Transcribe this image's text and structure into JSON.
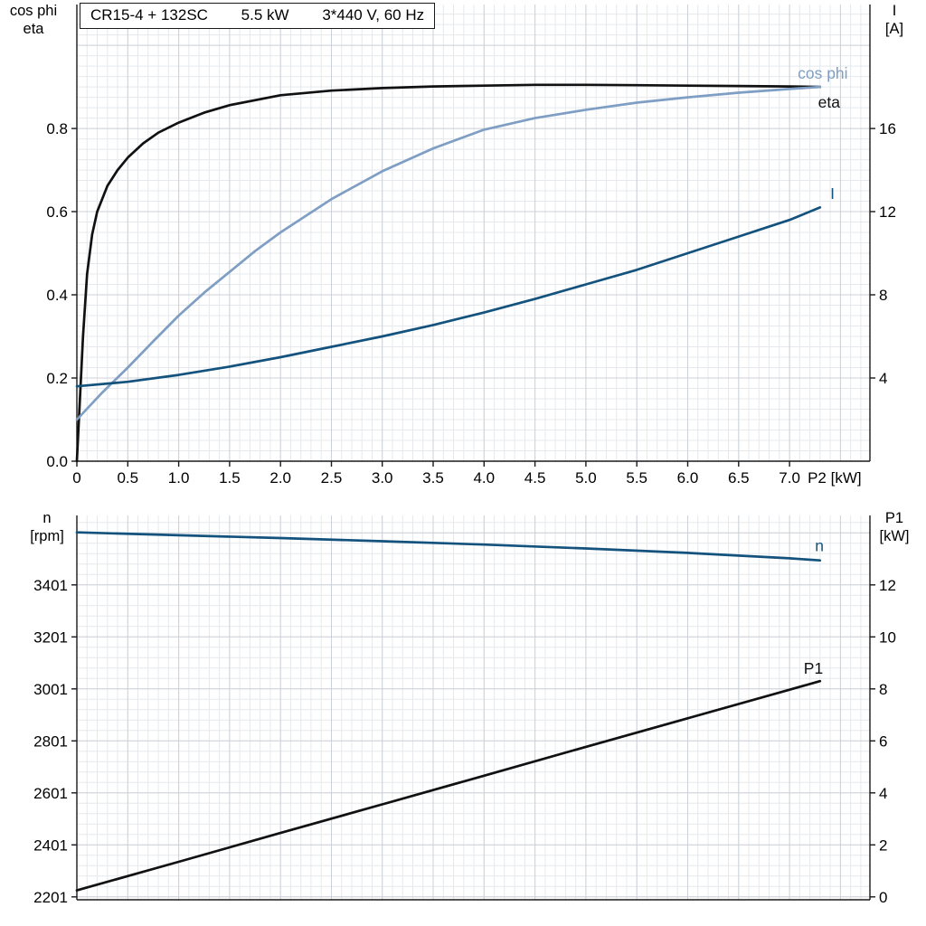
{
  "header": {
    "model": "CR15-4 + 132SC",
    "power": "5.5 kW",
    "voltage": "3*440 V, 60 Hz"
  },
  "axes_titles": {
    "top_left_line1": "cos phi",
    "top_left_line2": "eta",
    "top_right_line1": "I",
    "top_right_line2": "[A]",
    "bottom_left_line1": "n",
    "bottom_left_line2": "[rpm]",
    "bottom_right_line1": "P1",
    "bottom_right_line2": "[kW]"
  },
  "chart_data": [
    {
      "type": "line",
      "title": "CR15-4 + 132SC   5.5 kW   3*440 V, 60 Hz",
      "xlabel": "P2 [kW]",
      "xlim": [
        0,
        7.79
      ],
      "x_ticks": [
        "0",
        "0.5",
        "1.0",
        "1.5",
        "2.0",
        "2.5",
        "3.0",
        "3.5",
        "4.0",
        "4.5",
        "5.0",
        "5.5",
        "6.0",
        "6.5",
        "7.0"
      ],
      "left_axis": {
        "title": "cos phi / eta",
        "lim": [
          0,
          1.098
        ],
        "ticks": [
          "0.0",
          "0.2",
          "0.4",
          "0.6",
          "0.8"
        ]
      },
      "right_axis": {
        "title": "I [A]",
        "lim": [
          0,
          21.96
        ],
        "ticks": [
          "4",
          "8",
          "12",
          "16"
        ]
      },
      "grid": {
        "base_x": 0,
        "minor_x": 0.1,
        "major_x": 0.5,
        "base_y": 0,
        "minor_y": 0.025,
        "major_y": 0.2
      },
      "colors": {
        "grid_minor": "#e5e9ed",
        "grid_major": "#ccd2d8",
        "axis": "#1a1a1a",
        "text": "#000000"
      },
      "series": [
        {
          "name": "eta",
          "axis": "left",
          "color": "#111111",
          "x": [
            0,
            0.03,
            0.06,
            0.1,
            0.15,
            0.2,
            0.3,
            0.4,
            0.5,
            0.65,
            0.8,
            1.0,
            1.25,
            1.5,
            2.0,
            2.5,
            3.0,
            3.5,
            4.0,
            4.5,
            5.0,
            5.5,
            6.0,
            6.5,
            7.0,
            7.3
          ],
          "y": [
            0,
            0.15,
            0.3,
            0.45,
            0.545,
            0.6,
            0.662,
            0.7,
            0.73,
            0.764,
            0.79,
            0.814,
            0.838,
            0.856,
            0.88,
            0.891,
            0.897,
            0.901,
            0.903,
            0.905,
            0.905,
            0.904,
            0.903,
            0.902,
            0.901,
            0.9
          ]
        },
        {
          "name": "cos phi",
          "axis": "left",
          "color": "#7f9ec4",
          "x": [
            0,
            0.25,
            0.5,
            0.75,
            1.0,
            1.25,
            1.5,
            1.75,
            2.0,
            2.5,
            3.0,
            3.5,
            4.0,
            4.5,
            5.0,
            5.5,
            6.0,
            6.5,
            7.0,
            7.3
          ],
          "y": [
            0.1,
            0.165,
            0.225,
            0.288,
            0.35,
            0.405,
            0.455,
            0.505,
            0.55,
            0.63,
            0.697,
            0.752,
            0.797,
            0.825,
            0.845,
            0.862,
            0.875,
            0.886,
            0.895,
            0.9
          ]
        },
        {
          "name": "I",
          "axis": "right",
          "color": "#14527e",
          "x": [
            0,
            0.5,
            1.0,
            1.5,
            2.0,
            2.5,
            3.0,
            3.5,
            4.0,
            4.5,
            5.0,
            5.5,
            6.0,
            6.5,
            7.0,
            7.3
          ],
          "y": [
            3.6,
            3.82,
            4.15,
            4.55,
            5.0,
            5.5,
            6.0,
            6.55,
            7.15,
            7.8,
            8.5,
            9.2,
            10.0,
            10.8,
            11.6,
            12.2
          ]
        }
      ],
      "annotations": [
        {
          "text": "cos phi",
          "x": 7.08,
          "y": 0.92,
          "color": "#7f9ec4"
        },
        {
          "text": "eta",
          "x": 7.28,
          "y": 0.85,
          "color": "#111111"
        },
        {
          "text": "I",
          "x": 7.4,
          "y": 0.63,
          "color": "#14527e"
        }
      ]
    },
    {
      "type": "line",
      "title": "",
      "xlabel": "",
      "xlim": [
        0,
        7.79
      ],
      "x_ticks": [],
      "left_axis": {
        "title": "n [rpm]",
        "lim": [
          2190,
          3668
        ],
        "ticks": [
          "2201",
          "2401",
          "2601",
          "2801",
          "3001",
          "3201",
          "3401"
        ]
      },
      "right_axis": {
        "title": "P1 [kW]",
        "lim": [
          -0.11,
          14.67
        ],
        "ticks": [
          "0",
          "2",
          "4",
          "6",
          "8",
          "10",
          "12"
        ]
      },
      "grid": {
        "base_x": 0,
        "minor_x": 0.1,
        "major_x": 0.5,
        "base_y": 2201,
        "minor_y": 40,
        "major_y": 200
      },
      "colors": {
        "grid_minor": "#e5e9ed",
        "grid_major": "#ccd2d8",
        "axis": "#1a1a1a",
        "text": "#000000"
      },
      "series": [
        {
          "name": "n",
          "axis": "left",
          "color": "#14527e",
          "x": [
            0,
            1,
            2,
            3,
            4,
            5,
            6,
            7,
            7.3
          ],
          "y": [
            3603,
            3592,
            3581,
            3569,
            3556,
            3541,
            3524,
            3503,
            3495
          ]
        },
        {
          "name": "P1",
          "axis": "right",
          "color": "#111111",
          "x": [
            0,
            1,
            2,
            3,
            4,
            5,
            6,
            7,
            7.3
          ],
          "y": [
            0.25,
            1.35,
            2.46,
            3.56,
            4.66,
            5.77,
            6.87,
            7.97,
            8.3
          ]
        }
      ],
      "annotations": [
        {
          "text": "n",
          "x": 7.25,
          "y": 3530,
          "color": "#14527e"
        },
        {
          "text": "P1",
          "x": 7.14,
          "y": 3060,
          "color": "#111111"
        }
      ]
    }
  ]
}
